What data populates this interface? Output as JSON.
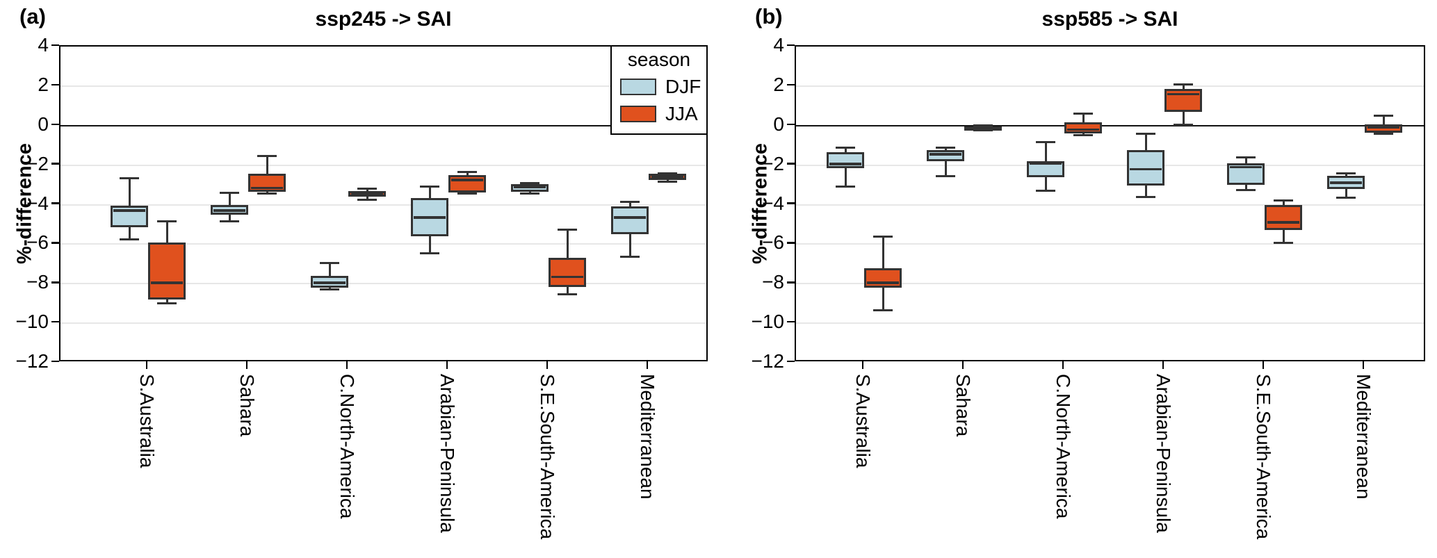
{
  "legend": {
    "title": "season",
    "entries": [
      {
        "label": "DJF",
        "color": "#b9d8e2"
      },
      {
        "label": "JJA",
        "color": "#e0511e"
      }
    ]
  },
  "style_colors": {
    "box_edge": "#333333",
    "zero_line": "#111111",
    "gridline": "#e7e7e7",
    "djf_fill": "#b9d8e2",
    "jja_fill": "#e0511e"
  },
  "chart_data": [
    {
      "type": "box",
      "letter": "(a)",
      "title": "ssp245 -> SAI",
      "ylabel": "%-difference",
      "ylim": [
        -12,
        4
      ],
      "yticks": [
        4,
        2,
        0,
        -2,
        -4,
        -6,
        -8,
        -10,
        -12
      ],
      "grid": "horizontal",
      "legend_position": "upper right of panel (a)",
      "categories": [
        "S.Australia",
        "Sahara",
        "C.North-America",
        "Arabian-Peninsula",
        "S.E.South-America",
        "Mediterranean"
      ],
      "series": [
        {
          "name": "DJF",
          "color": "#b9d8e2",
          "boxes": [
            {
              "lo": -5.75,
              "q1": -5.15,
              "med": -4.3,
              "q3": -4.05,
              "hi": -2.65
            },
            {
              "lo": -4.85,
              "q1": -4.5,
              "med": -4.3,
              "q3": -4.0,
              "hi": -3.4
            },
            {
              "lo": -8.3,
              "q1": -8.2,
              "med": -7.95,
              "q3": -7.6,
              "hi": -6.95
            },
            {
              "lo": -6.45,
              "q1": -5.6,
              "med": -4.65,
              "q3": -3.65,
              "hi": -3.1
            },
            {
              "lo": -3.45,
              "q1": -3.35,
              "med": -3.1,
              "q3": -2.95,
              "hi": -2.9
            },
            {
              "lo": -6.65,
              "q1": -5.5,
              "med": -4.65,
              "q3": -4.1,
              "hi": -3.85
            }
          ]
        },
        {
          "name": "JJA",
          "color": "#e0511e",
          "boxes": [
            {
              "lo": -9.0,
              "q1": -8.8,
              "med": -7.95,
              "q3": -5.9,
              "hi": -4.85
            },
            {
              "lo": -3.45,
              "q1": -3.35,
              "med": -3.15,
              "q3": -2.45,
              "hi": -1.55
            },
            {
              "lo": -3.75,
              "q1": -3.6,
              "med": -3.45,
              "q3": -3.3,
              "hi": -3.2
            },
            {
              "lo": -3.45,
              "q1": -3.4,
              "med": -2.75,
              "q3": -2.5,
              "hi": -2.35
            },
            {
              "lo": -8.55,
              "q1": -8.15,
              "med": -7.65,
              "q3": -6.7,
              "hi": -5.25
            },
            {
              "lo": -2.85,
              "q1": -2.75,
              "med": -2.6,
              "q3": -2.45,
              "hi": -2.4
            }
          ]
        }
      ]
    },
    {
      "type": "box",
      "letter": "(b)",
      "title": "ssp585 -> SAI",
      "ylabel": "%-difference",
      "ylim": [
        -12,
        4
      ],
      "yticks": [
        4,
        2,
        0,
        -2,
        -4,
        -6,
        -8,
        -10,
        -12
      ],
      "grid": "horizontal",
      "categories": [
        "S.Australia",
        "Sahara",
        "C.North-America",
        "Arabian-Peninsula",
        "S.E.South-America",
        "Mediterranean"
      ],
      "series": [
        {
          "name": "DJF",
          "color": "#b9d8e2",
          "boxes": [
            {
              "lo": -3.1,
              "q1": -2.15,
              "med": -1.95,
              "q3": -1.35,
              "hi": -1.1
            },
            {
              "lo": -2.55,
              "q1": -1.8,
              "med": -1.45,
              "q3": -1.25,
              "hi": -1.1
            },
            {
              "lo": -3.3,
              "q1": -2.6,
              "med": -1.9,
              "q3": -1.8,
              "hi": -0.85
            },
            {
              "lo": -3.6,
              "q1": -3.05,
              "med": -2.2,
              "q3": -1.25,
              "hi": -0.4
            },
            {
              "lo": -3.25,
              "q1": -3.0,
              "med": -2.1,
              "q3": -1.9,
              "hi": -1.6
            },
            {
              "lo": -3.65,
              "q1": -3.2,
              "med": -2.9,
              "q3": -2.55,
              "hi": -2.4
            }
          ]
        },
        {
          "name": "JJA",
          "color": "#e0511e",
          "boxes": [
            {
              "lo": -9.35,
              "q1": -8.2,
              "med": -7.95,
              "q3": -7.2,
              "hi": -5.6
            },
            {
              "lo": -0.25,
              "q1": -0.2,
              "med": -0.1,
              "q3": -0.05,
              "hi": 0.0
            },
            {
              "lo": -0.5,
              "q1": -0.4,
              "med": -0.2,
              "q3": 0.15,
              "hi": 0.6
            },
            {
              "lo": 0.05,
              "q1": 0.7,
              "med": 1.6,
              "q3": 1.85,
              "hi": 2.1
            },
            {
              "lo": -5.95,
              "q1": -5.3,
              "med": -4.9,
              "q3": -4.0,
              "hi": -3.8
            },
            {
              "lo": -0.4,
              "q1": -0.35,
              "med": -0.1,
              "q3": 0.05,
              "hi": 0.5
            }
          ]
        }
      ]
    }
  ]
}
